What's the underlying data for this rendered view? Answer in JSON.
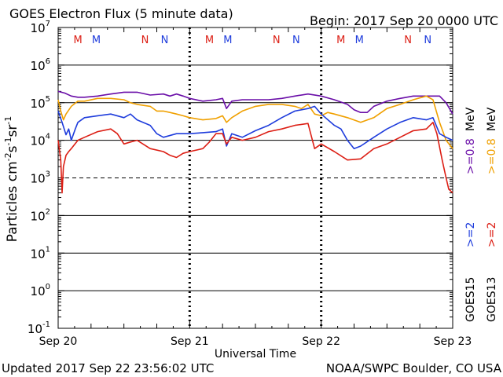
{
  "header": {
    "title": "GOES Electron Flux (5 minute data)",
    "begin": "Begin: 2017 Sep 20 0000 UTC"
  },
  "footer": {
    "updated": "Updated 2017 Sep 22 23:56:02 UTC",
    "credit": "NOAA/SWPC Boulder, CO USA"
  },
  "colors": {
    "goes15_gt2": "#1e3cdc",
    "goes15_gt08": "#6a0ea8",
    "goes13_gt2": "#dc1e14",
    "goes13_gt08": "#f0a000",
    "marker_m_east": "#dc1e14",
    "marker_m_west": "#1e3cdc",
    "marker_n_east": "#dc1e14",
    "marker_n_west": "#1e3cdc"
  },
  "right_legend": {
    "goes15": {
      "label": "GOES15",
      "gt2": ">=2",
      "gt08": ">=0.8",
      "unit": "MeV"
    },
    "goes13": {
      "label": "GOES13",
      "gt2": ">=2",
      "gt08": ">=0.8",
      "unit": "MeV"
    }
  },
  "chart_data": {
    "type": "line",
    "title": "GOES Electron Flux (5 minute data)",
    "xlabel": "Universal Time",
    "ylabel_parts": [
      "Particles cm",
      "-2",
      "s",
      "-1",
      "sr",
      "-1"
    ],
    "y_scale": "log",
    "ylim": [
      0.1,
      10000000
    ],
    "y_ticks": [
      {
        "exp": "7",
        "value": 10000000
      },
      {
        "exp": "6",
        "value": 1000000
      },
      {
        "exp": "5",
        "value": 100000
      },
      {
        "exp": "4",
        "value": 10000
      },
      {
        "exp": "3",
        "value": 1000
      },
      {
        "exp": "2",
        "value": 100
      },
      {
        "exp": "1",
        "value": 10
      },
      {
        "exp": "0",
        "value": 1
      },
      {
        "exp": "-1",
        "value": 0.1
      }
    ],
    "y_tick_base": "10",
    "x_range_days": [
      "2017-09-20 00:00",
      "2017-09-23 00:00"
    ],
    "x_ticks": [
      {
        "label": "Sep 20",
        "day": 0
      },
      {
        "label": "Sep 21",
        "day": 1
      },
      {
        "label": "Sep 22",
        "day": 2
      },
      {
        "label": "Sep 23",
        "day": 3
      }
    ],
    "alert_threshold": 1000,
    "markers": [
      {
        "label": "M",
        "day": 0.15,
        "kind": "m_east"
      },
      {
        "label": "M",
        "day": 0.29,
        "kind": "m_west"
      },
      {
        "label": "N",
        "day": 0.66,
        "kind": "n_east"
      },
      {
        "label": "N",
        "day": 0.81,
        "kind": "n_west"
      },
      {
        "label": "M",
        "day": 1.15,
        "kind": "m_east"
      },
      {
        "label": "M",
        "day": 1.29,
        "kind": "m_west"
      },
      {
        "label": "N",
        "day": 1.66,
        "kind": "n_east"
      },
      {
        "label": "N",
        "day": 1.81,
        "kind": "n_west"
      },
      {
        "label": "M",
        "day": 2.15,
        "kind": "m_east"
      },
      {
        "label": "M",
        "day": 2.29,
        "kind": "m_west"
      },
      {
        "label": "N",
        "day": 2.66,
        "kind": "n_east"
      },
      {
        "label": "N",
        "day": 2.81,
        "kind": "n_west"
      }
    ],
    "series": [
      {
        "id": "goes15_gt08",
        "color_key": "goes15_gt08",
        "points": [
          [
            0,
            200000
          ],
          [
            0.05,
            180000
          ],
          [
            0.1,
            150000
          ],
          [
            0.15,
            140000
          ],
          [
            0.2,
            140000
          ],
          [
            0.3,
            150000
          ],
          [
            0.4,
            170000
          ],
          [
            0.5,
            190000
          ],
          [
            0.6,
            190000
          ],
          [
            0.7,
            160000
          ],
          [
            0.8,
            170000
          ],
          [
            0.85,
            150000
          ],
          [
            0.9,
            170000
          ],
          [
            0.95,
            150000
          ],
          [
            1.0,
            130000
          ],
          [
            1.1,
            110000
          ],
          [
            1.2,
            120000
          ],
          [
            1.25,
            130000
          ],
          [
            1.28,
            70000
          ],
          [
            1.32,
            110000
          ],
          [
            1.4,
            120000
          ],
          [
            1.5,
            120000
          ],
          [
            1.6,
            120000
          ],
          [
            1.7,
            130000
          ],
          [
            1.8,
            150000
          ],
          [
            1.9,
            170000
          ],
          [
            2.0,
            150000
          ],
          [
            2.1,
            120000
          ],
          [
            2.2,
            90000
          ],
          [
            2.25,
            65000
          ],
          [
            2.3,
            55000
          ],
          [
            2.35,
            55000
          ],
          [
            2.4,
            80000
          ],
          [
            2.5,
            110000
          ],
          [
            2.6,
            130000
          ],
          [
            2.7,
            150000
          ],
          [
            2.8,
            150000
          ],
          [
            2.9,
            150000
          ],
          [
            2.95,
            100000
          ],
          [
            3.0,
            50000
          ]
        ]
      },
      {
        "id": "goes13_gt08",
        "color_key": "goes13_gt08",
        "points": [
          [
            0,
            120000
          ],
          [
            0.02,
            60000
          ],
          [
            0.04,
            35000
          ],
          [
            0.06,
            50000
          ],
          [
            0.1,
            80000
          ],
          [
            0.15,
            110000
          ],
          [
            0.2,
            110000
          ],
          [
            0.3,
            130000
          ],
          [
            0.4,
            130000
          ],
          [
            0.5,
            120000
          ],
          [
            0.55,
            100000
          ],
          [
            0.6,
            90000
          ],
          [
            0.7,
            80000
          ],
          [
            0.75,
            60000
          ],
          [
            0.8,
            60000
          ],
          [
            0.85,
            55000
          ],
          [
            0.9,
            50000
          ],
          [
            0.95,
            45000
          ],
          [
            1.0,
            40000
          ],
          [
            1.1,
            35000
          ],
          [
            1.2,
            38000
          ],
          [
            1.25,
            45000
          ],
          [
            1.28,
            30000
          ],
          [
            1.32,
            40000
          ],
          [
            1.4,
            60000
          ],
          [
            1.5,
            80000
          ],
          [
            1.6,
            90000
          ],
          [
            1.7,
            90000
          ],
          [
            1.8,
            80000
          ],
          [
            1.85,
            70000
          ],
          [
            1.9,
            90000
          ],
          [
            1.95,
            50000
          ],
          [
            2.0,
            45000
          ],
          [
            2.05,
            55000
          ],
          [
            2.1,
            50000
          ],
          [
            2.2,
            40000
          ],
          [
            2.3,
            30000
          ],
          [
            2.4,
            40000
          ],
          [
            2.5,
            70000
          ],
          [
            2.6,
            90000
          ],
          [
            2.7,
            120000
          ],
          [
            2.8,
            150000
          ],
          [
            2.85,
            120000
          ],
          [
            2.9,
            30000
          ],
          [
            2.95,
            10000
          ],
          [
            3.0,
            6000
          ]
        ]
      },
      {
        "id": "goes15_gt2",
        "color_key": "goes15_gt2",
        "points": [
          [
            0,
            60000
          ],
          [
            0.03,
            30000
          ],
          [
            0.06,
            14000
          ],
          [
            0.08,
            20000
          ],
          [
            0.1,
            10000
          ],
          [
            0.13,
            20000
          ],
          [
            0.15,
            30000
          ],
          [
            0.2,
            40000
          ],
          [
            0.3,
            45000
          ],
          [
            0.4,
            50000
          ],
          [
            0.5,
            40000
          ],
          [
            0.55,
            50000
          ],
          [
            0.6,
            35000
          ],
          [
            0.7,
            25000
          ],
          [
            0.75,
            15000
          ],
          [
            0.8,
            12000
          ],
          [
            0.9,
            15000
          ],
          [
            1.0,
            15000
          ],
          [
            1.1,
            16000
          ],
          [
            1.2,
            17000
          ],
          [
            1.25,
            20000
          ],
          [
            1.28,
            7000
          ],
          [
            1.32,
            15000
          ],
          [
            1.4,
            12000
          ],
          [
            1.5,
            18000
          ],
          [
            1.6,
            25000
          ],
          [
            1.7,
            40000
          ],
          [
            1.8,
            60000
          ],
          [
            1.9,
            70000
          ],
          [
            1.95,
            80000
          ],
          [
            2.0,
            50000
          ],
          [
            2.1,
            25000
          ],
          [
            2.15,
            20000
          ],
          [
            2.2,
            10000
          ],
          [
            2.25,
            6000
          ],
          [
            2.3,
            7000
          ],
          [
            2.4,
            12000
          ],
          [
            2.5,
            20000
          ],
          [
            2.6,
            30000
          ],
          [
            2.7,
            40000
          ],
          [
            2.8,
            35000
          ],
          [
            2.85,
            40000
          ],
          [
            2.9,
            15000
          ],
          [
            2.95,
            12000
          ],
          [
            3.0,
            10000
          ]
        ]
      },
      {
        "id": "goes13_gt2",
        "color_key": "goes13_gt2",
        "points": [
          [
            0,
            10000
          ],
          [
            0.02,
            3000
          ],
          [
            0.03,
            400
          ],
          [
            0.04,
            2000
          ],
          [
            0.06,
            4000
          ],
          [
            0.08,
            5000
          ],
          [
            0.1,
            6000
          ],
          [
            0.15,
            10000
          ],
          [
            0.2,
            12000
          ],
          [
            0.3,
            17000
          ],
          [
            0.4,
            20000
          ],
          [
            0.45,
            15000
          ],
          [
            0.5,
            8000
          ],
          [
            0.55,
            9000
          ],
          [
            0.6,
            10000
          ],
          [
            0.7,
            6000
          ],
          [
            0.8,
            5000
          ],
          [
            0.85,
            4000
          ],
          [
            0.9,
            3500
          ],
          [
            0.95,
            4500
          ],
          [
            1.0,
            5000
          ],
          [
            1.1,
            6000
          ],
          [
            1.15,
            9000
          ],
          [
            1.2,
            15000
          ],
          [
            1.25,
            15000
          ],
          [
            1.28,
            8000
          ],
          [
            1.32,
            12000
          ],
          [
            1.4,
            10000
          ],
          [
            1.5,
            12000
          ],
          [
            1.6,
            17000
          ],
          [
            1.7,
            20000
          ],
          [
            1.8,
            25000
          ],
          [
            1.9,
            28000
          ],
          [
            1.95,
            6000
          ],
          [
            2.0,
            8000
          ],
          [
            2.1,
            5000
          ],
          [
            2.2,
            3000
          ],
          [
            2.3,
            3200
          ],
          [
            2.4,
            6000
          ],
          [
            2.5,
            8000
          ],
          [
            2.6,
            12000
          ],
          [
            2.7,
            18000
          ],
          [
            2.8,
            20000
          ],
          [
            2.85,
            30000
          ],
          [
            2.88,
            15000
          ],
          [
            2.92,
            3000
          ],
          [
            2.95,
            1000
          ],
          [
            2.97,
            500
          ],
          [
            3.0,
            400
          ]
        ]
      }
    ]
  }
}
